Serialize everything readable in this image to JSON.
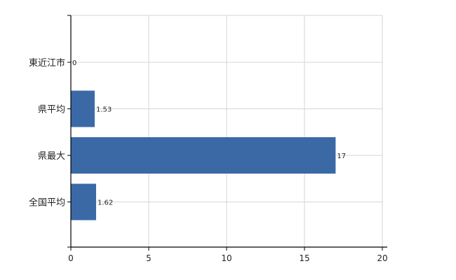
{
  "chart_data": {
    "type": "bar",
    "orientation": "horizontal",
    "categories": [
      "東近江市",
      "県平均",
      "県最大",
      "全国平均"
    ],
    "values": [
      0,
      1.53,
      17,
      1.62
    ],
    "value_labels": [
      "0",
      "1.53",
      "17",
      "1.62"
    ],
    "x_ticks": [
      0,
      5,
      10,
      15,
      20
    ],
    "xlim": [
      0,
      20
    ],
    "title": "",
    "xlabel": "",
    "ylabel": "",
    "grid": true,
    "legend": "none",
    "bar_color": "#3a69a6"
  }
}
